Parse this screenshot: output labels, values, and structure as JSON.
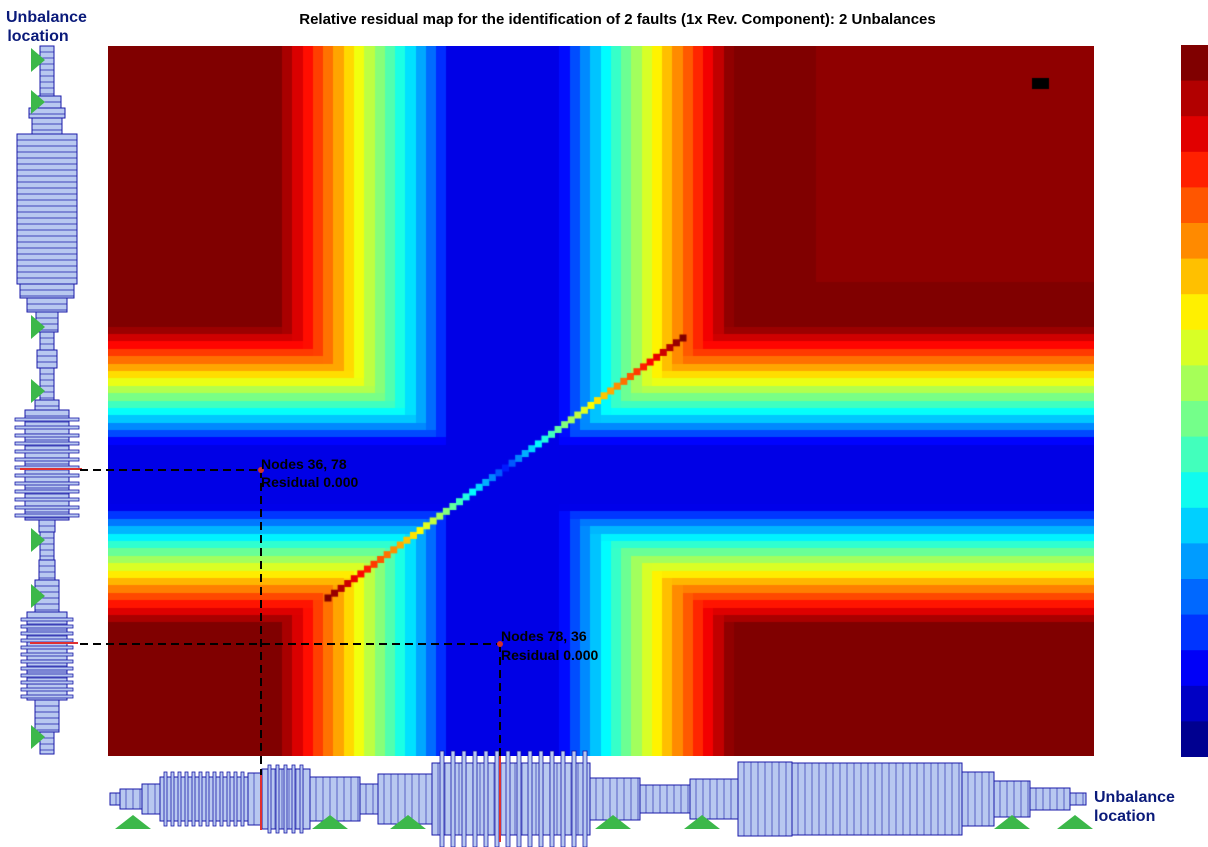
{
  "title": "Relative residual map for the identification of 2 faults (1x Rev. Component):  2 Unbalances",
  "left_label": {
    "line1": "Unbalance",
    "line2": "location"
  },
  "bottom_label": {
    "line1": "Unbalance",
    "line2": "location"
  },
  "colors": {
    "dashed_line": "#000000",
    "rotor_fill": "#b8c8f0",
    "rotor_stroke": "#1a1aa8",
    "bearing": "#3cb84a",
    "marker": "#e03030",
    "colorbar": [
      "#800000",
      "#b20000",
      "#e10000",
      "#ff2000",
      "#ff5600",
      "#ff8a00",
      "#ffc000",
      "#fff000",
      "#d8ff26",
      "#a6ff58",
      "#74ff8a",
      "#42ffbc",
      "#10fbef",
      "#00d0ff",
      "#009cff",
      "#0068ff",
      "#0034ff",
      "#0000f8",
      "#0000c4",
      "#000090"
    ]
  },
  "chart_data": {
    "type": "heatmap",
    "title": "Relative residual map for the identification of 2 faults (1x Rev. Component):  2 Unbalances",
    "xlabel": "Unbalance location",
    "ylabel": "Unbalance location",
    "colormap": "jet",
    "colorbar": {
      "levels": 20,
      "tick_labels": []
    },
    "minima": [
      {
        "nodes": [
          36,
          78
        ],
        "residual": 0.0,
        "lines": [
          "Nodes 36, 78",
          "Residual 0.000"
        ]
      },
      {
        "nodes": [
          78,
          36
        ],
        "residual": 0.0,
        "lines": [
          "Nodes 78, 36",
          "Residual 0.000"
        ]
      }
    ],
    "features": [
      "low-residual horizontal band centered at row node 36",
      "low-residual vertical band centered at column node 78",
      "diagonal of high residual values where both nodes coincide",
      "high residual elsewhere"
    ]
  }
}
